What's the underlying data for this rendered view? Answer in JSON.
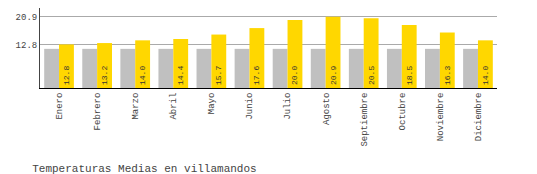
{
  "chart_data": {
    "type": "bar",
    "title": "Temperaturas Medias en villamandos",
    "categories": [
      "Enero",
      "Febrero",
      "Marzo",
      "Abril",
      "Mayo",
      "Junio",
      "Julio",
      "Agosto",
      "Septiembre",
      "Octubre",
      "Noviembre",
      "Diciembre"
    ],
    "series": [
      {
        "color": "#C0C0C0",
        "values": [
          11.5,
          11.5,
          11.5,
          11.5,
          11.5,
          11.5,
          11.5,
          11.5,
          11.5,
          11.5,
          11.5,
          11.5
        ]
      },
      {
        "color": "#FFD700",
        "values": [
          12.8,
          13.2,
          14.0,
          14.4,
          15.7,
          17.6,
          20.0,
          20.9,
          20.5,
          18.5,
          16.3,
          14.0
        ],
        "value_labels": [
          "12.8",
          "13.2",
          "14.0",
          "14.4",
          "15.7",
          "17.6",
          "20.0",
          "20.9",
          "20.5",
          "18.5",
          "16.3",
          "14.0"
        ]
      }
    ],
    "ylim": [
      0,
      23.5
    ],
    "yticks": [
      12.8,
      20.9
    ],
    "y2lim": [
      0,
      23.5
    ],
    "y2ticks": [
      12.8,
      20.9
    ],
    "grid": true,
    "data_labels": true
  }
}
